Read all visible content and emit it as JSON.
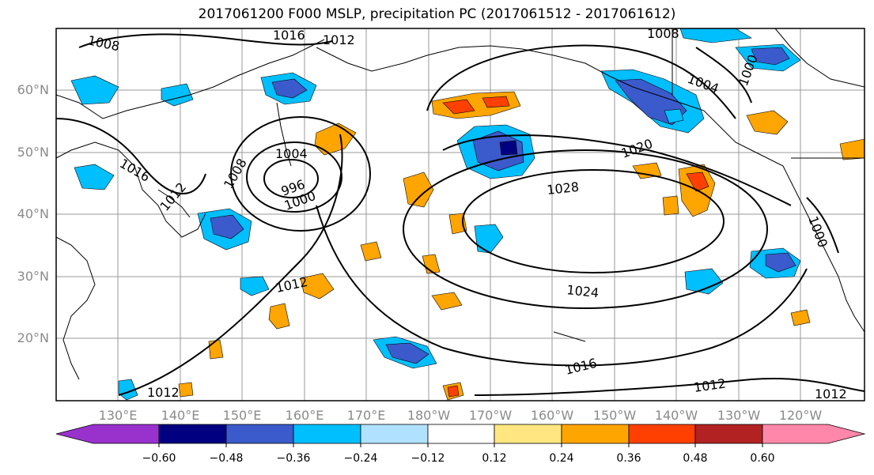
{
  "title": "2017061200 F000 MSLP, precipitation PC (2017061512 - 2017061612)",
  "lat_labels": [
    "60°N",
    "50°N",
    "40°N",
    "30°N",
    "20°N"
  ],
  "lon_labels": [
    "130°E",
    "140°E",
    "150°E",
    "160°E",
    "170°E",
    "180°W",
    "170°W",
    "160°W",
    "150°W",
    "140°W",
    "130°W",
    "120°W"
  ],
  "isobar_labels": [
    "1008",
    "1016",
    "1012",
    "1008",
    "1004",
    "1004",
    "1000",
    "1016",
    "1012",
    "1008",
    "996",
    "1000",
    "1020",
    "1028",
    "1024",
    "1012",
    "1016",
    "1012",
    "1012",
    "1012",
    "1000"
  ],
  "colorbar": {
    "tick_labels": [
      "−0.60",
      "−0.48",
      "−0.36",
      "−0.24",
      "−0.12",
      "0.12",
      "0.24",
      "0.36",
      "0.48",
      "0.60"
    ],
    "colors": [
      "#9932cc",
      "#000080",
      "#3b5bcc",
      "#00bfff",
      "#b0e2ff",
      "#ffffff",
      "#ffe680",
      "#ffa500",
      "#ff4000",
      "#b22222",
      "#ff88aa"
    ]
  }
}
